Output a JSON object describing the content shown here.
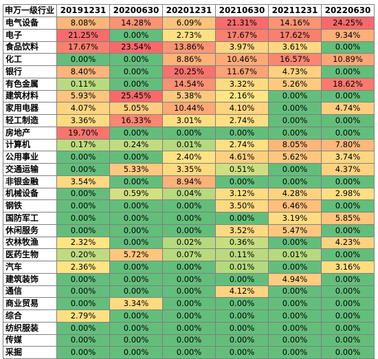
{
  "table": {
    "header_label": "申万一级行业",
    "dates": [
      "20191231",
      "20200630",
      "20201231",
      "20210630",
      "20211231",
      "20220630"
    ],
    "rows": [
      {
        "industry": "电气设备",
        "values": [
          "8.08%",
          "14.28%",
          "6.09%",
          "21.31%",
          "14.16%",
          "24.25%"
        ]
      },
      {
        "industry": "电子",
        "values": [
          "21.25%",
          "0.00%",
          "2.73%",
          "17.67%",
          "17.62%",
          "9.34%"
        ]
      },
      {
        "industry": "食品饮料",
        "values": [
          "17.67%",
          "23.54%",
          "13.86%",
          "3.97%",
          "3.61%",
          "0.00%"
        ]
      },
      {
        "industry": "化工",
        "values": [
          "0.00%",
          "0.00%",
          "8.86%",
          "10.46%",
          "16.57%",
          "10.89%"
        ]
      },
      {
        "industry": "银行",
        "values": [
          "8.40%",
          "0.00%",
          "20.25%",
          "11.67%",
          "4.73%",
          "0.00%"
        ]
      },
      {
        "industry": "有色金属",
        "values": [
          "0.11%",
          "0.00%",
          "14.54%",
          "3.32%",
          "5.26%",
          "18.62%"
        ]
      },
      {
        "industry": "建筑材料",
        "values": [
          "5.93%",
          "25.45%",
          "5.38%",
          "2.16%",
          "0.00%",
          "0.00%"
        ]
      },
      {
        "industry": "家用电器",
        "values": [
          "4.07%",
          "5.05%",
          "10.44%",
          "4.10%",
          "0.00%",
          "4.74%"
        ]
      },
      {
        "industry": "轻工制造",
        "values": [
          "3.36%",
          "16.33%",
          "3.01%",
          "2.74%",
          "0.00%",
          "0.00%"
        ]
      },
      {
        "industry": "房地产",
        "values": [
          "19.70%",
          "0.00%",
          "0.00%",
          "0.00%",
          "0.00%",
          "0.00%"
        ]
      },
      {
        "industry": "计算机",
        "values": [
          "0.17%",
          "0.24%",
          "0.01%",
          "2.74%",
          "8.05%",
          "7.80%"
        ]
      },
      {
        "industry": "公用事业",
        "values": [
          "0.00%",
          "0.00%",
          "2.40%",
          "4.61%",
          "5.62%",
          "3.74%"
        ]
      },
      {
        "industry": "交通运输",
        "values": [
          "0.00%",
          "5.33%",
          "3.35%",
          "0.51%",
          "0.00%",
          "4.37%"
        ]
      },
      {
        "industry": "非银金融",
        "values": [
          "3.54%",
          "0.00%",
          "8.94%",
          "0.00%",
          "0.00%",
          "0.00%"
        ]
      },
      {
        "industry": "机械设备",
        "values": [
          "0.00%",
          "0.59%",
          "0.04%",
          "3.12%",
          "4.28%",
          "2.98%"
        ]
      },
      {
        "industry": "钢铁",
        "values": [
          "0.00%",
          "0.00%",
          "0.00%",
          "3.50%",
          "6.46%",
          "0.00%"
        ]
      },
      {
        "industry": "国防军工",
        "values": [
          "0.00%",
          "0.00%",
          "0.00%",
          "0.00%",
          "3.19%",
          "5.85%"
        ]
      },
      {
        "industry": "休闲服务",
        "values": [
          "0.00%",
          "0.00%",
          "0.00%",
          "3.52%",
          "5.47%",
          "0.00%"
        ]
      },
      {
        "industry": "农林牧渔",
        "values": [
          "2.32%",
          "0.00%",
          "0.02%",
          "0.36%",
          "0.00%",
          "4.23%"
        ]
      },
      {
        "industry": "医药生物",
        "values": [
          "0.20%",
          "5.72%",
          "0.07%",
          "0.11%",
          "0.01%",
          "0.00%"
        ]
      },
      {
        "industry": "汽车",
        "values": [
          "2.36%",
          "0.00%",
          "0.00%",
          "0.01%",
          "0.00%",
          "3.16%"
        ]
      },
      {
        "industry": "建筑装饰",
        "values": [
          "0.00%",
          "0.00%",
          "0.00%",
          "0.00%",
          "4.94%",
          "0.00%"
        ]
      },
      {
        "industry": "通信",
        "values": [
          "0.00%",
          "0.00%",
          "0.00%",
          "4.12%",
          "0.00%",
          "0.00%"
        ]
      },
      {
        "industry": "商业贸易",
        "values": [
          "0.00%",
          "3.34%",
          "0.00%",
          "0.00%",
          "0.00%",
          "0.00%"
        ]
      },
      {
        "industry": "综合",
        "values": [
          "2.79%",
          "0.00%",
          "0.00%",
          "0.00%",
          "0.00%",
          "0.00%"
        ]
      },
      {
        "industry": "纺织服装",
        "values": [
          "0.00%",
          "0.00%",
          "0.00%",
          "0.00%",
          "0.00%",
          "0.00%"
        ]
      },
      {
        "industry": "传媒",
        "values": [
          "0.00%",
          "0.00%",
          "0.00%",
          "0.00%",
          "0.00%",
          "0.00%"
        ]
      },
      {
        "industry": "采掘",
        "values": [
          "0.00%",
          "0.00%",
          "0.00%",
          "0.00%",
          "0.00%",
          "0.00%"
        ]
      }
    ]
  },
  "colors": {
    "zero": "#63be7b",
    "low": "#b5d97f",
    "mid": "#ffeb84",
    "high": "#f8696b",
    "header_bg": "#ffffff",
    "grid": "#7f7f7f"
  }
}
